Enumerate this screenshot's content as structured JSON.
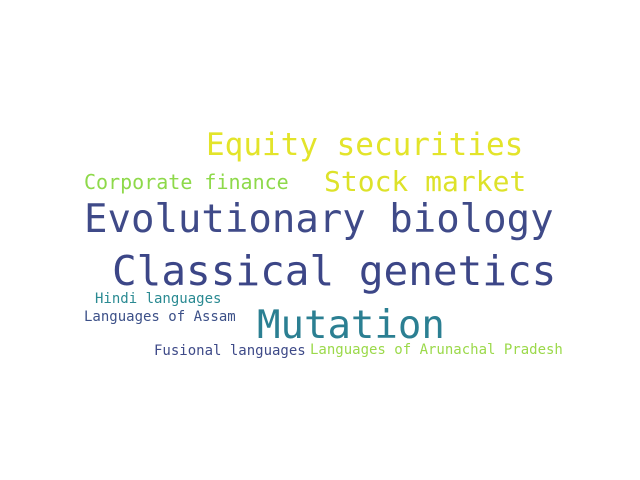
{
  "words": [
    {
      "text": "Equity securities",
      "color": "#e3e42a"
    },
    {
      "text": "Corporate finance",
      "color": "#8ed94a"
    },
    {
      "text": "Stock market",
      "color": "#dde229"
    },
    {
      "text": "Evolutionary biology",
      "color": "#3f4a88"
    },
    {
      "text": "Classical genetics",
      "color": "#3c4687"
    },
    {
      "text": "Hindi languages",
      "color": "#2a8a92"
    },
    {
      "text": "Languages of Assam",
      "color": "#3c5088"
    },
    {
      "text": "Mutation",
      "color": "#2b7f92"
    },
    {
      "text": "Fusional languages",
      "color": "#3e4a88"
    },
    {
      "text": "Languages of Arunachal Pradesh",
      "color": "#9bd94a"
    }
  ]
}
